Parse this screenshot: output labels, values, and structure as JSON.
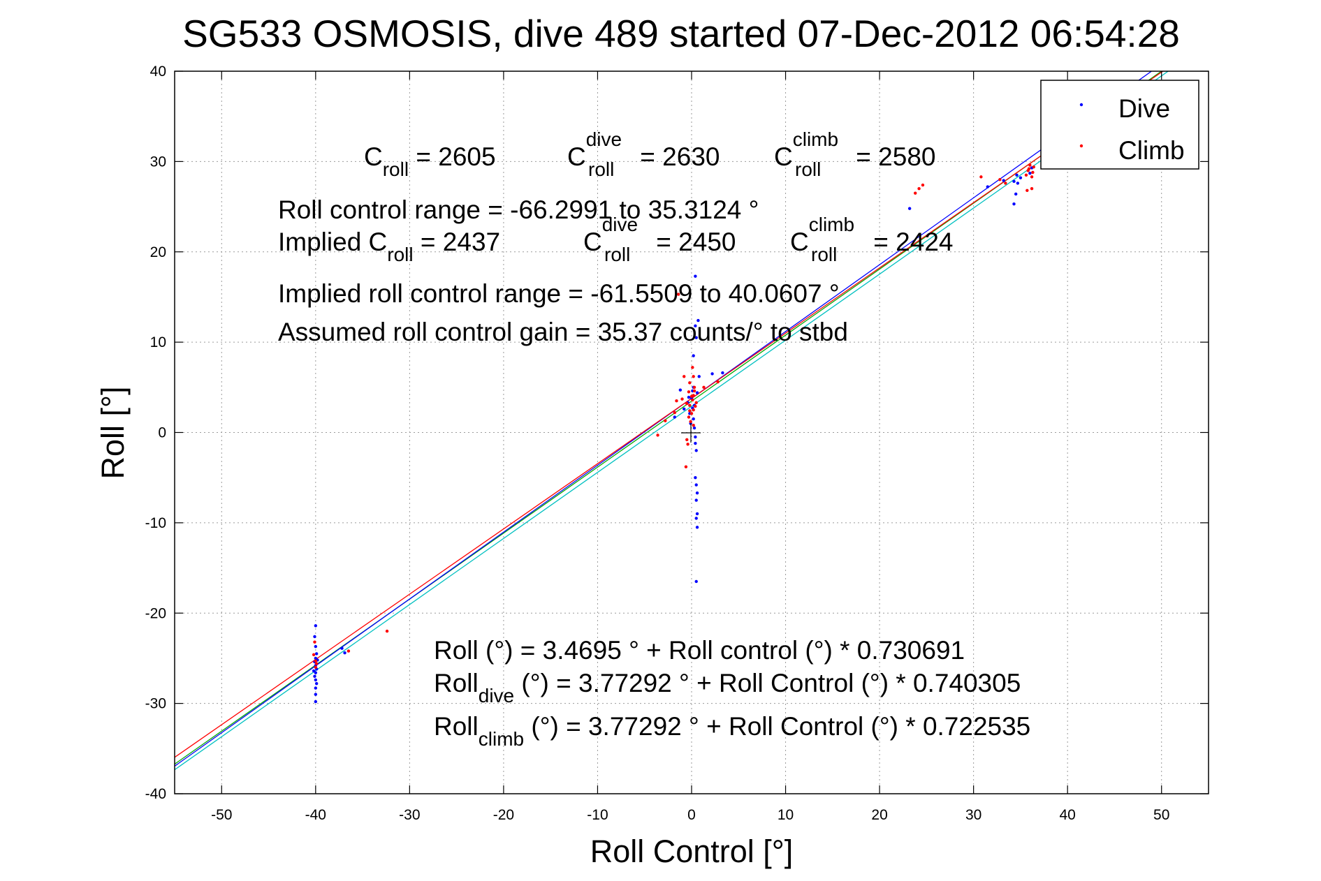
{
  "window": {
    "background": "#ffffff"
  },
  "chart_data": {
    "type": "scatter",
    "title": "SG533 OSMOSIS, dive 489 started 07-Dec-2012 06:54:28",
    "xlabel": "Roll Control [°]",
    "ylabel": "Roll [°]",
    "xlim": [
      -55,
      55
    ],
    "ylim": [
      -40,
      40
    ],
    "xticks": [
      -50,
      -40,
      -30,
      -20,
      -10,
      0,
      10,
      20,
      30,
      40,
      50
    ],
    "yticks": [
      -40,
      -30,
      -20,
      -10,
      0,
      10,
      20,
      30,
      40
    ],
    "xtick_labels": [
      "-50",
      "-40",
      "-30",
      "-20",
      "-10",
      "0",
      "10",
      "20",
      "30",
      "40",
      "50"
    ],
    "ytick_labels": [
      "-40",
      "-30",
      "-20",
      "-10",
      "0",
      "10",
      "20",
      "30",
      "40"
    ],
    "grid": true,
    "legend_position": "top-right",
    "series": [
      {
        "name": "Dive",
        "color": "#0000ff",
        "points": [
          [
            -40.0,
            -21.4
          ],
          [
            -40.1,
            -22.6
          ],
          [
            -40.0,
            -23.7
          ],
          [
            -39.9,
            -24.5
          ],
          [
            -40.0,
            -25.0
          ],
          [
            -40.1,
            -25.4
          ],
          [
            -40.0,
            -25.8
          ],
          [
            -39.9,
            -26.2
          ],
          [
            -40.0,
            -26.6
          ],
          [
            -40.1,
            -27.0
          ],
          [
            -40.0,
            -27.4
          ],
          [
            -39.9,
            -27.8
          ],
          [
            -40.0,
            -28.3
          ],
          [
            -40.0,
            -29.0
          ],
          [
            -40.0,
            -29.8
          ],
          [
            -39.8,
            -25.2
          ],
          [
            -40.2,
            -26.4
          ],
          [
            -36.9,
            -24.4
          ],
          [
            -37.2,
            -23.9
          ],
          [
            -1.8,
            1.7
          ],
          [
            -0.8,
            2.6
          ],
          [
            -0.4,
            3.3
          ],
          [
            -0.2,
            2.1
          ],
          [
            0.0,
            3.8
          ],
          [
            0.1,
            4.6
          ],
          [
            0.2,
            5.0
          ],
          [
            0.3,
            3.0
          ],
          [
            0.2,
            1.5
          ],
          [
            0.3,
            0.5
          ],
          [
            0.4,
            -0.5
          ],
          [
            0.4,
            -1.2
          ],
          [
            0.5,
            -2.0
          ],
          [
            0.4,
            -5.0
          ],
          [
            0.5,
            -5.8
          ],
          [
            0.6,
            -6.7
          ],
          [
            0.5,
            -7.5
          ],
          [
            0.6,
            -9.0
          ],
          [
            0.5,
            -9.5
          ],
          [
            0.6,
            -10.5
          ],
          [
            0.5,
            -16.5
          ],
          [
            0.2,
            8.5
          ],
          [
            0.5,
            10.5
          ],
          [
            0.4,
            11.8
          ],
          [
            0.7,
            12.4
          ],
          [
            0.4,
            17.3
          ],
          [
            0.6,
            4.4
          ],
          [
            0.8,
            6.2
          ],
          [
            -1.2,
            4.7
          ],
          [
            2.2,
            6.5
          ],
          [
            3.3,
            6.6
          ],
          [
            -0.3,
            3.9
          ],
          [
            0.1,
            2.7
          ],
          [
            -0.1,
            1.0
          ],
          [
            23.2,
            24.8
          ],
          [
            31.5,
            27.2
          ],
          [
            33.2,
            27.9
          ],
          [
            34.3,
            27.8
          ],
          [
            34.6,
            28.5
          ],
          [
            34.7,
            27.6
          ],
          [
            34.5,
            26.4
          ],
          [
            34.3,
            25.3
          ],
          [
            35.0,
            28.2
          ],
          [
            36.0,
            28.7
          ],
          [
            36.2,
            29.3
          ]
        ]
      },
      {
        "name": "Climb",
        "color": "#ff0000",
        "points": [
          [
            -40.1,
            -23.2
          ],
          [
            -40.2,
            -24.6
          ],
          [
            -40.0,
            -25.3
          ],
          [
            -39.9,
            -25.6
          ],
          [
            -40.0,
            -26.0
          ],
          [
            -36.5,
            -24.2
          ],
          [
            -32.4,
            -22.0
          ],
          [
            -3.6,
            -0.3
          ],
          [
            -2.8,
            1.3
          ],
          [
            -1.8,
            2.2
          ],
          [
            -1.6,
            3.5
          ],
          [
            -1.0,
            3.7
          ],
          [
            -0.5,
            3.2
          ],
          [
            -0.3,
            4.5
          ],
          [
            -0.2,
            2.4
          ],
          [
            0.0,
            2.1
          ],
          [
            0.1,
            3.6
          ],
          [
            0.2,
            4.1
          ],
          [
            0.3,
            5.0
          ],
          [
            0.2,
            6.2
          ],
          [
            0.1,
            7.2
          ],
          [
            -0.2,
            5.5
          ],
          [
            -0.1,
            1.2
          ],
          [
            -0.5,
            -0.8
          ],
          [
            -0.4,
            -1.3
          ],
          [
            -0.6,
            -3.8
          ],
          [
            -0.8,
            6.2
          ],
          [
            0.4,
            2.9
          ],
          [
            0.2,
            0.8
          ],
          [
            -0.3,
            1.7
          ],
          [
            0.5,
            3.3
          ],
          [
            1.3,
            5.0
          ],
          [
            2.8,
            5.6
          ],
          [
            -1.4,
            15.3
          ],
          [
            0.0,
            4.0
          ],
          [
            -0.2,
            3.0
          ],
          [
            0.2,
            2.5
          ],
          [
            0.3,
            4.6
          ],
          [
            23.8,
            26.5
          ],
          [
            24.2,
            27.0
          ],
          [
            24.6,
            27.4
          ],
          [
            30.8,
            28.3
          ],
          [
            32.8,
            28.0
          ],
          [
            33.4,
            27.6
          ],
          [
            35.6,
            28.5
          ],
          [
            35.8,
            29.0
          ],
          [
            36.0,
            29.6
          ],
          [
            36.2,
            28.3
          ],
          [
            36.3,
            28.8
          ],
          [
            35.7,
            26.8
          ],
          [
            36.2,
            27.0
          ],
          [
            35.9,
            29.2
          ],
          [
            36.4,
            29.4
          ]
        ]
      }
    ],
    "fit_lines": [
      {
        "label": "all",
        "intercept": 3.4695,
        "slope": 0.730691,
        "color": "#00aa00"
      },
      {
        "label": "dive",
        "intercept": 3.77292,
        "slope": 0.740305,
        "color": "#0000ff"
      },
      {
        "label": "climb",
        "intercept": 3.77292,
        "slope": 0.722535,
        "color": "#ff0000"
      },
      {
        "label": "implied",
        "intercept": 2.9,
        "slope": 0.7317,
        "color": "#00c0c0"
      }
    ]
  },
  "annotations": {
    "c_roll": {
      "main": "C",
      "sub": "roll",
      "rest": " = 2605"
    },
    "c_roll_dive": {
      "main": "C",
      "sup": "dive",
      "sub": "roll",
      "rest": " = 2630"
    },
    "c_roll_climb": {
      "main": "C",
      "sup": "climb",
      "sub": "roll",
      "rest": " = 2580"
    },
    "roll_control_range": "Roll control range = -66.2991 to 35.3124 °",
    "implied_c_roll": {
      "main": "Implied C",
      "sub": "roll",
      "rest": " = 2437"
    },
    "implied_c_roll_dive": {
      "main": "C",
      "sup": "dive",
      "sub": "roll",
      "rest": " = 2450"
    },
    "implied_c_roll_climb": {
      "main": "C",
      "sup": "climb",
      "sub": "roll",
      "rest": " = 2424"
    },
    "implied_range": "Implied roll control range = -61.5509 to 40.0607 °",
    "gain": "Assumed roll control gain = 35.37 counts/° to stbd",
    "fit_all": "Roll (°) = 3.4695 ° + Roll control (°) * 0.730691",
    "fit_dive": {
      "main": "Roll",
      "sub": "dive",
      "rest": " (°) = 3.77292 ° + Roll Control (°) * 0.740305"
    },
    "fit_climb": {
      "main": "Roll",
      "sub": "climb",
      "rest": " (°) = 3.77292 ° + Roll Control (°) * 0.722535"
    }
  }
}
